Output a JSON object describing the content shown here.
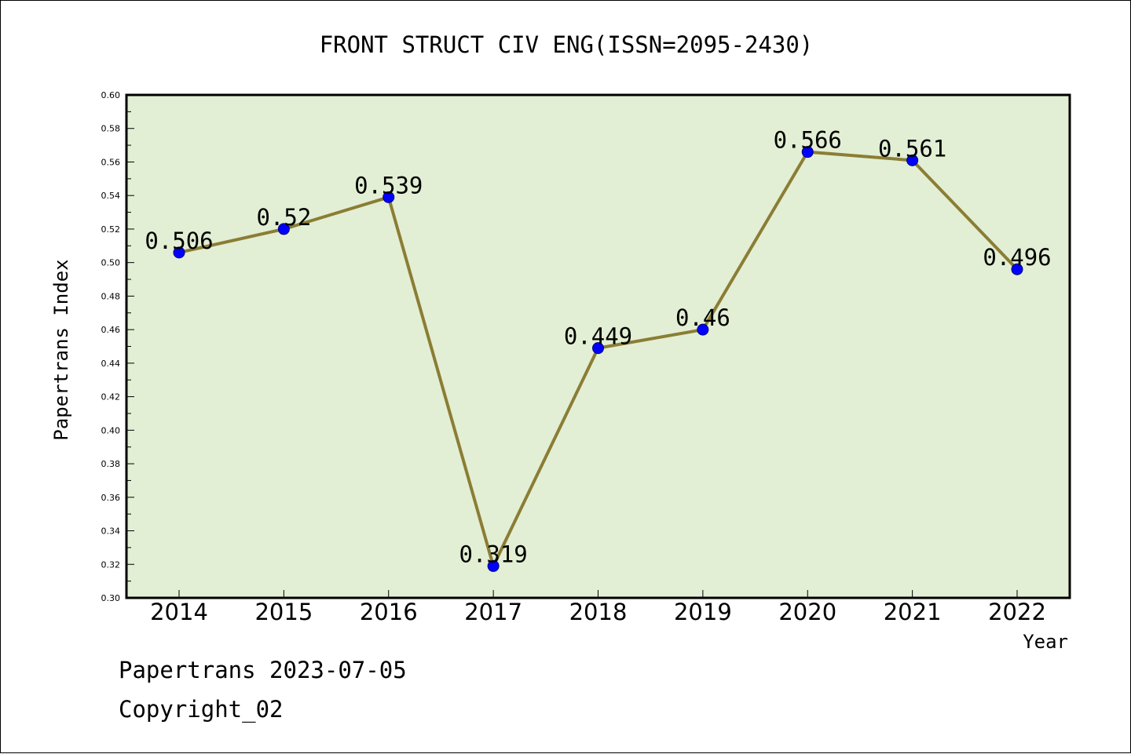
{
  "chart_data": {
    "type": "line",
    "title": "FRONT STRUCT CIV ENG(ISSN=2095-2430)",
    "xlabel": "Year",
    "ylabel": "Papertrans Index",
    "categories": [
      "2014",
      "2015",
      "2016",
      "2017",
      "2018",
      "2019",
      "2020",
      "2021",
      "2022"
    ],
    "values": [
      0.506,
      0.52,
      0.539,
      0.319,
      0.449,
      0.46,
      0.566,
      0.561,
      0.496
    ],
    "data_labels": [
      "0.506",
      "0.52",
      "0.539",
      "0.319",
      "0.449",
      "0.46",
      "0.566",
      "0.561",
      "0.496"
    ],
    "ylim": [
      0.3,
      0.6
    ],
    "yticks": [
      "0.30",
      "0.32",
      "0.34",
      "0.36",
      "0.38",
      "0.40",
      "0.42",
      "0.44",
      "0.46",
      "0.48",
      "0.50",
      "0.52",
      "0.54",
      "0.56",
      "0.58",
      "0.60"
    ],
    "grid": false,
    "colors": {
      "plot_background": "#e2efd4",
      "line": "#8b7d35",
      "marker": "#0000ff"
    }
  },
  "footer": {
    "line1": "Papertrans 2023-07-05",
    "line2": "Copyright_02"
  }
}
